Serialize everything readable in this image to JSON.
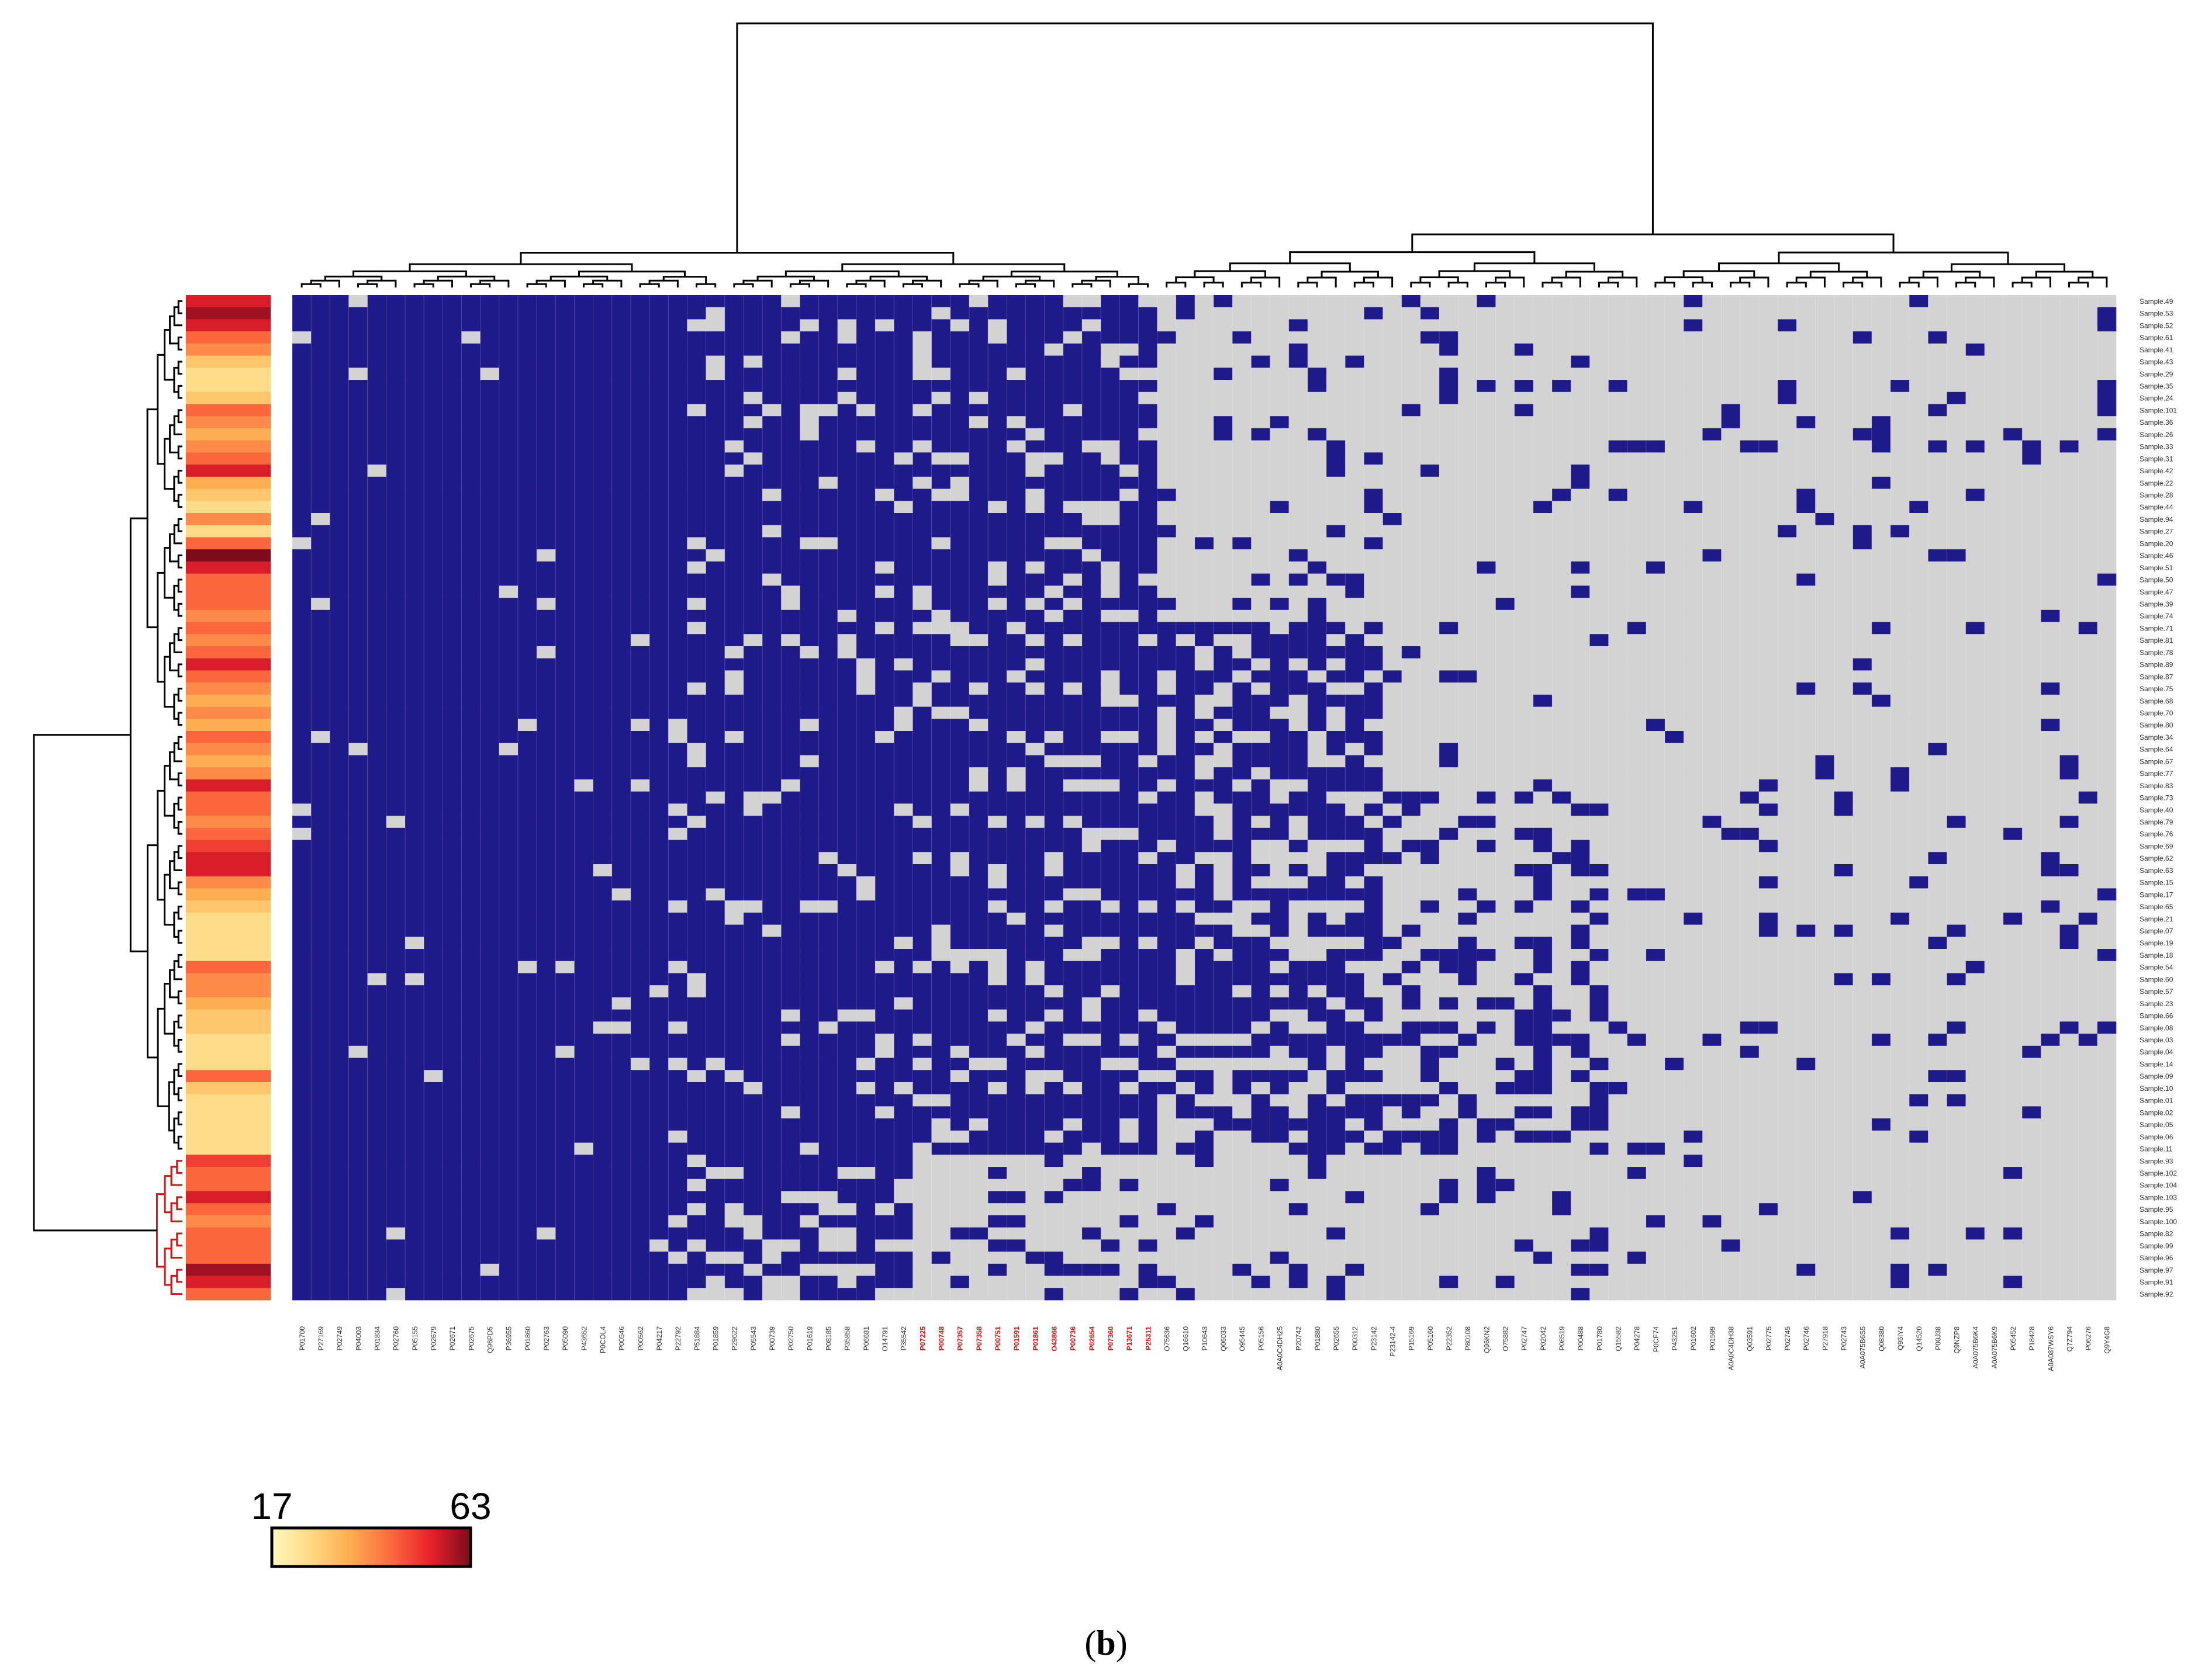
{
  "chart_data": {
    "type": "heatmap",
    "title": "",
    "panel_label_open": "(",
    "panel_label_letter": "b",
    "panel_label_close": ")",
    "values_legend": {
      "present": "#1f1a8a",
      "absent": "#d3d3d3"
    },
    "colorbar": {
      "min_label": "17",
      "max_label": "63",
      "min": 17,
      "max": 63,
      "colors": [
        "#fff7bf",
        "#ffd980",
        "#fdab50",
        "#fb6a3d",
        "#e8212b",
        "#7d0b1c"
      ]
    },
    "columns": [
      "P01700",
      "P27169",
      "P02749",
      "P04003",
      "P01834",
      "P02760",
      "P05155",
      "P02679",
      "P02671",
      "P02675",
      "Q96PD5",
      "P36955",
      "P01860",
      "P02763",
      "P05090",
      "P43652",
      "P0COL4",
      "P00546",
      "P00562",
      "P04217",
      "P22792",
      "P51884",
      "P01859",
      "P29622",
      "P05543",
      "P00739",
      "P02750",
      "P01619",
      "P08185",
      "P35858",
      "P06681",
      "O14791",
      "P35542",
      "P07225",
      "P00748",
      "P07357",
      "P07358",
      "P00751",
      "P01591",
      "P01861",
      "O43866",
      "P00736",
      "P02654",
      "P07360",
      "P13671",
      "P25311",
      "O75636",
      "Q16610",
      "P10643",
      "Q06033",
      "O95445",
      "P05156",
      "A0A0C4DH25",
      "P20742",
      "P01880",
      "P02655",
      "P00312",
      "P23142",
      "P23142-4",
      "P15169",
      "P05160",
      "P22352",
      "P80108",
      "Q96KN2",
      "O75882",
      "P02747",
      "P02042",
      "P08519",
      "P00488",
      "P01780",
      "Q15582",
      "P04278",
      "P0CF74",
      "P43251",
      "P01602",
      "P01599",
      "A0A0C4DH38",
      "Q03591",
      "P02775",
      "P02745",
      "P02746",
      "P27918",
      "P02743",
      "A0A075B6S5",
      "Q08380",
      "Q96IY4",
      "Q14520",
      "P00J38",
      "Q9NZP8",
      "A0A075B6K4",
      "A0A075B6K9",
      "P05452",
      "P18428",
      "A0A087WSY6",
      "Q7Z794",
      "P06276",
      "Q9Y4G8"
    ],
    "highlighted_columns": [
      "P07225",
      "P00748",
      "P07357",
      "P07358",
      "P00751",
      "P01591",
      "P01861",
      "O43866",
      "P00736",
      "P02654",
      "P07360",
      "P13671",
      "P25311"
    ],
    "rows": [
      "Sample.49",
      "Sample.53",
      "Sample.52",
      "Sample.61",
      "Sample.41",
      "Sample.43",
      "Sample.29",
      "Sample.35",
      "Sample.24",
      "Sample.101",
      "Sample.36",
      "Sample.26",
      "Sample.33",
      "Sample.31",
      "Sample.42",
      "Sample.22",
      "Sample.28",
      "Sample.44",
      "Sample.94",
      "Sample.27",
      "Sample.20",
      "Sample.46",
      "Sample.51",
      "Sample.50",
      "Sample.47",
      "Sample.39",
      "Sample.74",
      "Sample.71",
      "Sample.81",
      "Sample.78",
      "Sample.89",
      "Sample.87",
      "Sample.75",
      "Sample.68",
      "Sample.70",
      "Sample.80",
      "Sample.34",
      "Sample.64",
      "Sample.67",
      "Sample.77",
      "Sample.83",
      "Sample.73",
      "Sample.40",
      "Sample.79",
      "Sample.76",
      "Sample.69",
      "Sample.62",
      "Sample.63",
      "Sample.15",
      "Sample.17",
      "Sample.65",
      "Sample.21",
      "Sample.07",
      "Sample.19",
      "Sample.18",
      "Sample.54",
      "Sample.60",
      "Sample.57",
      "Sample.23",
      "Sample.66",
      "Sample.08",
      "Sample.03",
      "Sample.04",
      "Sample.14",
      "Sample.09",
      "Sample.10",
      "Sample.01",
      "Sample.02",
      "Sample.05",
      "Sample.06",
      "Sample.11",
      "Sample.93",
      "Sample.102",
      "Sample.104",
      "Sample.103",
      "Sample.95",
      "Sample.100",
      "Sample.82",
      "Sample.99",
      "Sample.96",
      "Sample.97",
      "Sample.91",
      "Sample.92"
    ],
    "row_annotation_values": [
      55,
      60,
      55,
      45,
      40,
      30,
      25,
      25,
      30,
      45,
      40,
      35,
      40,
      45,
      55,
      35,
      30,
      25,
      40,
      25,
      45,
      63,
      55,
      45,
      45,
      45,
      40,
      45,
      40,
      45,
      55,
      45,
      40,
      35,
      40,
      35,
      45,
      40,
      35,
      40,
      55,
      45,
      45,
      40,
      45,
      50,
      55,
      55,
      40,
      35,
      30,
      25,
      25,
      25,
      25,
      45,
      40,
      40,
      35,
      30,
      30,
      25,
      25,
      25,
      45,
      30,
      25,
      25,
      25,
      25,
      25,
      50,
      45,
      45,
      55,
      45,
      40,
      45,
      45,
      45,
      60,
      55,
      45
    ],
    "first_column_group_size": 46,
    "red_cluster_start_row": 71
  }
}
